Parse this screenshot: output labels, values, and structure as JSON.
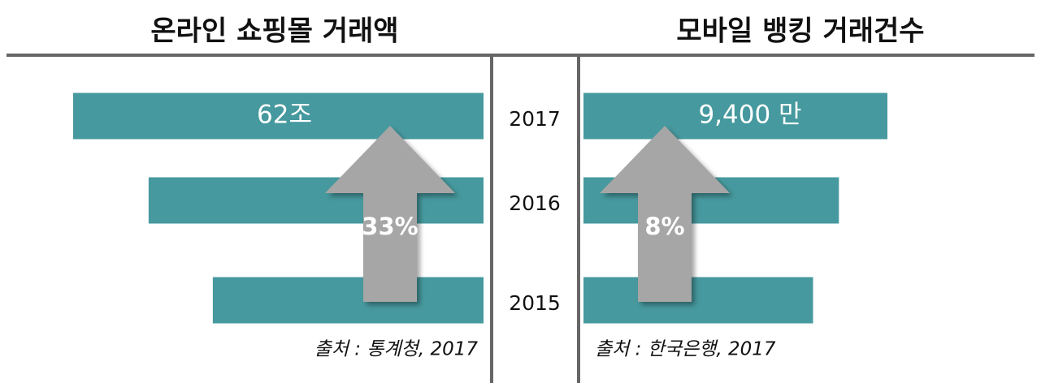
{
  "categories": [
    "2017",
    "2016",
    "2015"
  ],
  "chart_data": [
    {
      "type": "bar",
      "title": "온라인 쇼핑몰 거래액",
      "direction": "left",
      "color": "#46999e",
      "values": [
        62,
        50.6,
        40.9
      ],
      "value_labels": [
        "62조",
        null,
        null
      ],
      "xlim": [
        0,
        62
      ],
      "annotation": "33%",
      "source": "출처 : 통계청, 2017"
    },
    {
      "type": "bar",
      "title": "모바일 뱅킹 거래건수",
      "direction": "right",
      "color": "#46999e",
      "values": [
        9400,
        7900,
        7100
      ],
      "value_labels": [
        "9,400 만",
        null,
        null
      ],
      "xlim": [
        0,
        9400
      ],
      "annotation": "8%",
      "source": "출처 : 한국은행, 2017"
    }
  ]
}
